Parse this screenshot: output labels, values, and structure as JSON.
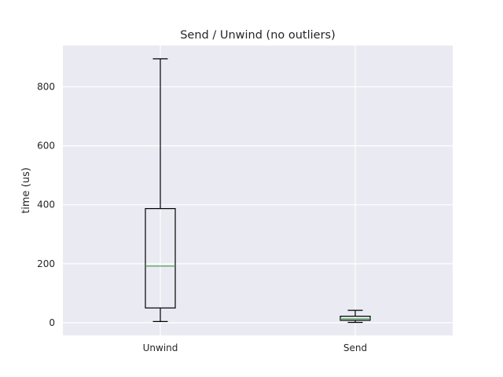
{
  "chart_data": {
    "type": "box",
    "title": "Send / Unwind (no outliers)",
    "xlabel": "",
    "ylabel": "time (us)",
    "categories": [
      "Unwind",
      "Send"
    ],
    "boxes": [
      {
        "name": "Unwind",
        "whisker_low": 4,
        "q1": 50,
        "median": 192,
        "q3": 387,
        "whisker_high": 895
      },
      {
        "name": "Send",
        "whisker_low": 1,
        "q1": 8,
        "median": 13,
        "q3": 22,
        "whisker_high": 42
      }
    ],
    "yticks": [
      0,
      200,
      400,
      600,
      800
    ],
    "ytick_labels": [
      "0",
      "200",
      "400",
      "600",
      "800"
    ],
    "ylim": [
      -43,
      940
    ],
    "grid": true,
    "colors": {
      "axes_bg": "#eaeaf2",
      "grid": "#ffffff",
      "box_edge": "#000000",
      "median": "#4c9f5a",
      "text": "#262626"
    }
  }
}
